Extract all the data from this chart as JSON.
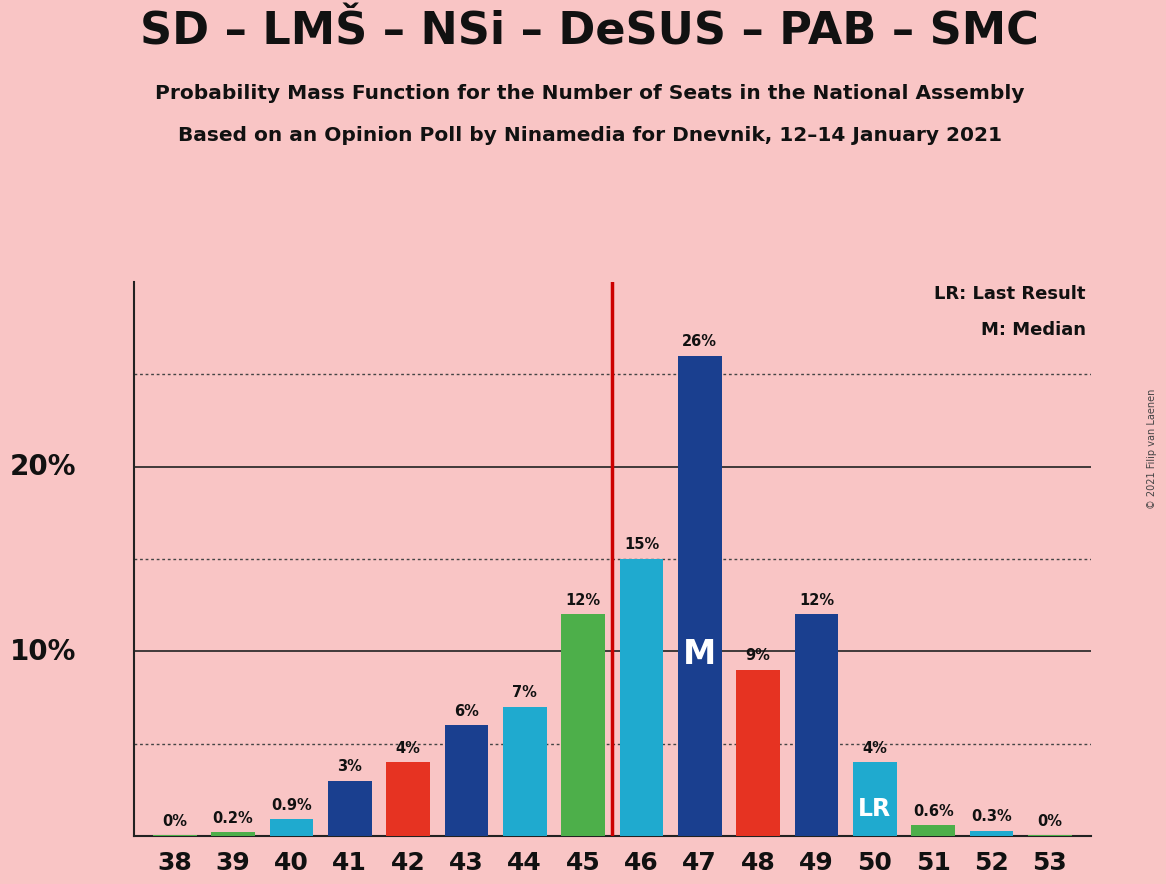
{
  "title": "SD – LMŠ – NSi – DeSUS – PAB – SMC",
  "subtitle1": "Probability Mass Function for the Number of Seats in the National Assembly",
  "subtitle2": "Based on an Opinion Poll by Ninamedia for Dnevnik, 12–14 January 2021",
  "copyright": "© 2021 Filip van Laenen",
  "seats": [
    38,
    39,
    40,
    41,
    42,
    43,
    44,
    45,
    46,
    47,
    48,
    49,
    50,
    51,
    52,
    53
  ],
  "values": [
    0.05,
    0.2,
    0.9,
    3.0,
    4.0,
    6.0,
    7.0,
    12.0,
    15.0,
    26.0,
    9.0,
    12.0,
    4.0,
    0.6,
    0.3,
    0.05
  ],
  "bar_colors": [
    "#4daf4a",
    "#4daf4a",
    "#1faacf",
    "#1a3f8f",
    "#e63322",
    "#1a3f8f",
    "#1faacf",
    "#4daf4a",
    "#1faacf",
    "#1a3f8f",
    "#e63322",
    "#1a3f8f",
    "#1faacf",
    "#4daf4a",
    "#1faacf",
    "#4daf4a"
  ],
  "labels": [
    "0%",
    "0.2%",
    "0.9%",
    "3%",
    "4%",
    "6%",
    "7%",
    "12%",
    "15%",
    "26%",
    "9%",
    "12%",
    "4%",
    "0.6%",
    "0.3%",
    "0%"
  ],
  "median_seat": 47,
  "lr_seat": 50,
  "vline_x": 45.5,
  "vline_color": "#cc0000",
  "background_color": "#f9c5c5",
  "ylim": [
    0,
    30
  ],
  "dotted_lines": [
    5,
    15,
    25
  ],
  "solid_lines": [
    10,
    20
  ],
  "legend_lr": "LR: Last Result",
  "legend_m": "M: Median",
  "ylabel_10": "10%",
  "ylabel_20": "20%"
}
